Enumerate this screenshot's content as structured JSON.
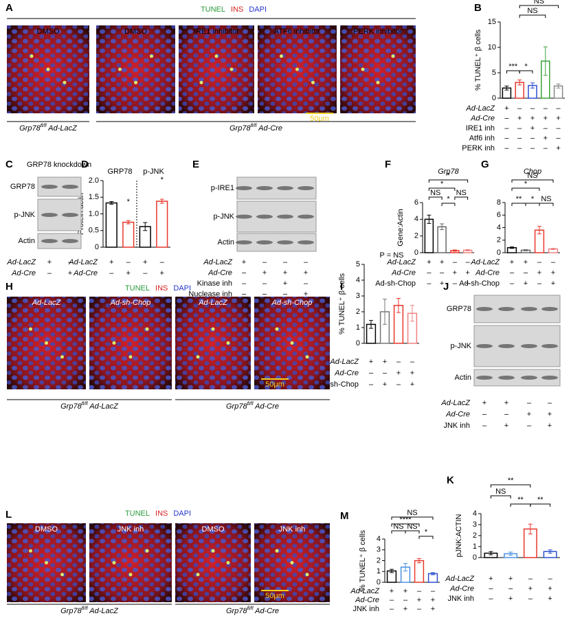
{
  "chart_data": [
    {
      "letter": "B",
      "type": "bar",
      "ylabel": "% TUNEL⁺ β cells",
      "values": [
        2.0,
        3.1,
        2.5,
        7.3,
        2.4
      ],
      "errors": [
        0.4,
        0.5,
        0.5,
        2.8,
        0.4
      ],
      "colors": [
        "#000000",
        "#e8362a",
        "#2c4fd0",
        "#3aa33a",
        "#888888"
      ],
      "ylim": [
        0,
        15
      ],
      "yticks": [
        0,
        5,
        10,
        15
      ],
      "conditions": [
        {
          "name": "Ad-LacZ",
          "marks": [
            "+",
            "–",
            "–",
            "–",
            "–"
          ]
        },
        {
          "name": "Ad-Cre",
          "marks": [
            "–",
            "+",
            "+",
            "+",
            "+"
          ]
        },
        {
          "name": "IRE1 inh",
          "marks": [
            "–",
            "–",
            "+",
            "–",
            "–"
          ]
        },
        {
          "name": "Atf6 inh",
          "marks": [
            "–",
            "–",
            "–",
            "+",
            "–"
          ]
        },
        {
          "name": "PERK inh",
          "marks": [
            "–",
            "–",
            "–",
            "–",
            "+"
          ]
        }
      ],
      "annotations": [
        "***",
        "*",
        "NS",
        "NS"
      ]
    },
    {
      "letter": "D",
      "type": "bar",
      "subtitles": [
        "GRP78",
        "p-JNK"
      ],
      "ylabel": "Protein:actin",
      "values": [
        1.33,
        0.75,
        0.62,
        1.38
      ],
      "errors": [
        0.04,
        0.05,
        0.12,
        0.06
      ],
      "colors": [
        "#000000",
        "#e8362a",
        "#000000",
        "#e8362a"
      ],
      "ylim": [
        0,
        2
      ],
      "yticks": [
        0,
        0.5,
        {
          "value": 1,
          "label": "1.0"
        },
        1.5,
        {
          "value": 2,
          "label": "2.0"
        }
      ],
      "conditions": [
        {
          "name": "Ad-LacZ",
          "marks": [
            "+",
            "–",
            "+",
            "–"
          ]
        },
        {
          "name": "Ad-Cre",
          "marks": [
            "–",
            "+",
            "–",
            "+"
          ]
        }
      ],
      "annotations": [
        "*",
        "*"
      ]
    },
    {
      "letter": "F",
      "type": "bar",
      "title": "Grp78",
      "ylabel": "Gene:Actin",
      "values": [
        4.0,
        3.1,
        0.25,
        0.3
      ],
      "errors": [
        0.5,
        0.35,
        0.08,
        0.08
      ],
      "colors": [
        "#000000",
        "#666666",
        "#e8362a",
        "#f08080"
      ],
      "ylim": [
        0,
        6
      ],
      "yticks": [
        0,
        2,
        4,
        6
      ],
      "conditions": [
        {
          "name": "Ad-LacZ",
          "marks": [
            "+",
            "+",
            "–",
            "–"
          ]
        },
        {
          "name": "Ad-Cre",
          "marks": [
            "–",
            "–",
            "+",
            "+"
          ]
        },
        {
          "name": "Ad-sh-Chop",
          "marks": [
            "–",
            "+",
            "–",
            "+"
          ]
        }
      ],
      "annotations": [
        "*",
        "*",
        "NS",
        "*",
        "NS"
      ]
    },
    {
      "letter": "G",
      "type": "bar",
      "title": "Chop",
      "values": [
        0.8,
        0.4,
        3.6,
        0.6
      ],
      "errors": [
        0.12,
        0.1,
        0.6,
        0.1
      ],
      "colors": [
        "#000000",
        "#666666",
        "#e8362a",
        "#f08080"
      ],
      "ylim": [
        0,
        8
      ],
      "yticks": [
        0,
        2,
        4,
        6,
        8
      ],
      "conditions": [
        {
          "name": "Ad-LacZ",
          "marks": [
            "+",
            "+",
            "–",
            "–"
          ]
        },
        {
          "name": "Ad-Cre",
          "marks": [
            "–",
            "–",
            "+",
            "+"
          ]
        },
        {
          "name": "Ad-sh-Chop",
          "marks": [
            "–",
            "+",
            "–",
            "+"
          ]
        }
      ],
      "annotations": [
        "NS",
        "*",
        "**",
        "*",
        "NS"
      ]
    },
    {
      "letter": "I",
      "type": "bar",
      "ylabel": "% TUNEL⁺ β cells",
      "values": [
        1.2,
        2.0,
        2.4,
        1.9
      ],
      "errors": [
        0.25,
        0.8,
        0.45,
        0.5
      ],
      "colors": [
        "#000000",
        "#777777",
        "#e8362a",
        "#f08080"
      ],
      "ylim": [
        0,
        5
      ],
      "yticks": [
        0,
        1,
        2,
        3,
        4,
        5
      ],
      "conditions": [
        {
          "name": "Ad-LacZ",
          "marks": [
            "+",
            "+",
            "–",
            "–"
          ]
        },
        {
          "name": "Ad-Cre",
          "marks": [
            "–",
            "–",
            "+",
            "+"
          ]
        },
        {
          "name": "Ad-sh-Chop",
          "marks": [
            "–",
            "+",
            "–",
            "+"
          ]
        }
      ],
      "annotations": [
        "P = NS"
      ]
    },
    {
      "letter": "K",
      "type": "bar",
      "ylabel": "pJNK:ACTIN",
      "values": [
        0.4,
        0.35,
        2.6,
        0.55
      ],
      "errors": [
        0.15,
        0.15,
        0.45,
        0.15
      ],
      "colors": [
        "#000000",
        "#4a90e2",
        "#e8362a",
        "#2c4fd0"
      ],
      "ylim": [
        0,
        4
      ],
      "yticks": [
        0,
        1,
        2,
        3,
        4
      ],
      "conditions": [
        {
          "name": "Ad-LacZ",
          "marks": [
            "+",
            "+",
            "–",
            "–"
          ]
        },
        {
          "name": "Ad-Cre",
          "marks": [
            "–",
            "–",
            "+",
            "+"
          ]
        },
        {
          "name": "JNK inh",
          "marks": [
            "–",
            "+",
            "–",
            "+"
          ]
        }
      ],
      "annotations": [
        "**",
        "NS",
        "**",
        "**"
      ]
    },
    {
      "letter": "M",
      "type": "bar",
      "ylabel": "% TUNEL⁺ β cells",
      "values": [
        1.05,
        1.4,
        2.0,
        0.8
      ],
      "errors": [
        0.15,
        0.35,
        0.2,
        0.1
      ],
      "colors": [
        "#000000",
        "#4a90e2",
        "#e8362a",
        "#2c4fd0"
      ],
      "ylim": [
        0,
        4
      ],
      "yticks": [
        0,
        1,
        2,
        3,
        4
      ],
      "conditions": [
        {
          "name": "Ad-LacZ",
          "marks": [
            "+",
            "+",
            "–",
            "–"
          ]
        },
        {
          "name": "Ad-Cre",
          "marks": [
            "–",
            "–",
            "+",
            "+"
          ]
        },
        {
          "name": "JNK inh",
          "marks": [
            "–",
            "+",
            "–",
            "+"
          ]
        }
      ],
      "annotations": [
        "NS",
        "****",
        "NS",
        "NS",
        "*"
      ]
    }
  ],
  "micrographs": [
    {
      "letter": "A",
      "legend": [
        "TUNEL",
        "INS",
        "DAPI"
      ],
      "images": [
        "DMSO",
        "DMSO",
        "IRE1 inhibitor",
        "ATF6 inhibitor",
        "PERK inhibitor"
      ],
      "groups": [
        {
          "gene": "Grp78",
          "sup": "fl/fl",
          "vector": " Ad-LacZ"
        },
        {
          "gene": "Grp78",
          "sup": "fl/fl",
          "vector": " Ad-Cre"
        }
      ],
      "scale": "50μm"
    },
    {
      "letter": "H",
      "legend": [
        "TUNEL",
        "INS",
        "DAPI"
      ],
      "images": [
        "Ad-LacZ",
        "Ad-sh-Chop",
        "Ad-LacZ",
        "Ad-sh-Chop"
      ],
      "groups": [
        {
          "gene": "Grp78",
          "sup": "fl/fl",
          "vector": " Ad-LacZ"
        },
        {
          "gene": "Grp78",
          "sup": "fl/fl",
          "vector": " Ad-Cre"
        }
      ],
      "scale": "50μm"
    },
    {
      "letter": "L",
      "legend": [
        "TUNEL",
        "INS",
        "DAPI"
      ],
      "images": [
        "DMSO",
        "JNK inh",
        "DMSO",
        "JNK inh"
      ],
      "groups": [
        {
          "gene": "Grp78",
          "sup": "fl/fl",
          "vector": " Ad-LacZ"
        },
        {
          "gene": "Grp78",
          "sup": "fl/fl",
          "vector": " Ad-Cre"
        }
      ],
      "scale": "50μm"
    }
  ],
  "blots": [
    {
      "letter": "C",
      "title": "GRP78 knockdown",
      "rows": [
        "GRP78",
        "p-JNK",
        "Actin"
      ],
      "conditions": [
        {
          "name": "Ad-LacZ",
          "marks": [
            "+",
            "–"
          ]
        },
        {
          "name": "Ad-Cre",
          "marks": [
            "–",
            "+"
          ]
        }
      ]
    },
    {
      "letter": "E",
      "rows": [
        "p-IRE1",
        "p-JNK",
        "Actin"
      ],
      "conditions": [
        {
          "name": "Ad-LacZ",
          "marks": [
            "+",
            "–",
            "–",
            "–"
          ]
        },
        {
          "name": "Ad-Cre",
          "marks": [
            "–",
            "+",
            "+",
            "+"
          ]
        },
        {
          "name": "Kinase inh",
          "marks": [
            "–",
            "–",
            "+",
            "–"
          ]
        },
        {
          "name": "Nuclease inh",
          "marks": [
            "–",
            "–",
            "–",
            "+"
          ]
        }
      ]
    },
    {
      "letter": "J",
      "rows": [
        "GRP78",
        "p-JNK",
        "Actin"
      ],
      "conditions": [
        {
          "name": "Ad-LacZ",
          "marks": [
            "+",
            "+",
            "–",
            "–"
          ]
        },
        {
          "name": "Ad-Cre",
          "marks": [
            "–",
            "–",
            "+",
            "+"
          ]
        },
        {
          "name": "JNK inh",
          "marks": [
            "–",
            "+",
            "–",
            "+"
          ]
        }
      ]
    }
  ]
}
